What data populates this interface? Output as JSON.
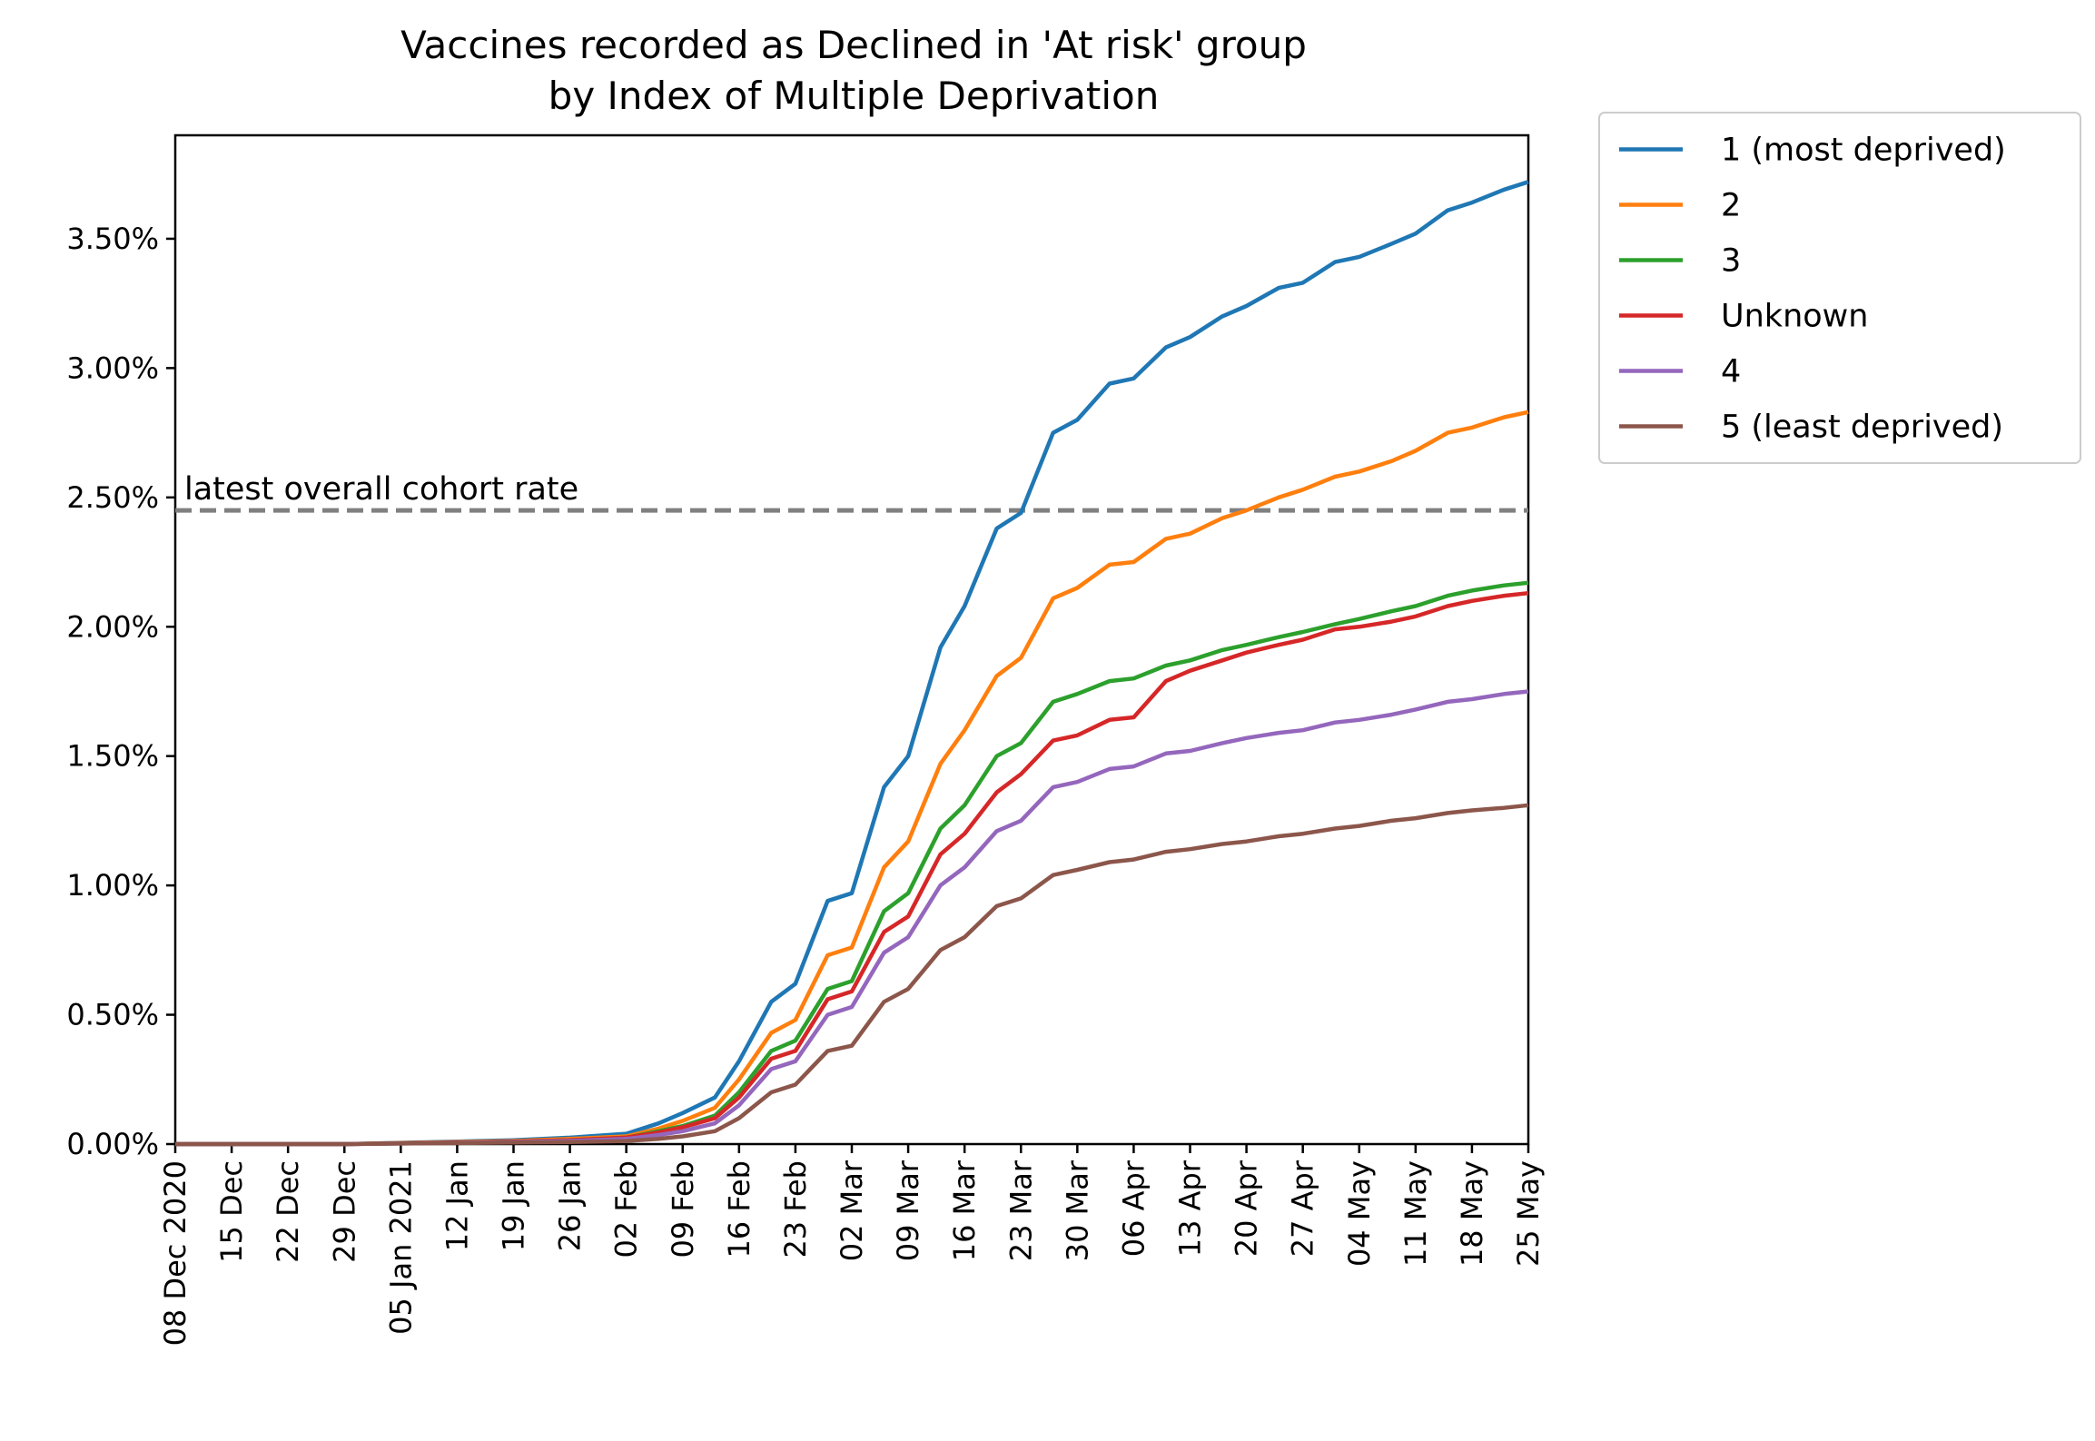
{
  "chart_data": {
    "type": "line",
    "title": "Vaccines recorded as Declined in 'At risk' group",
    "subtitle": "by Index of Multiple Deprivation",
    "xlabel": "",
    "ylabel": "",
    "x_range": [
      "2020-12-08",
      "2021-05-25"
    ],
    "ylim": [
      0,
      3.9
    ],
    "y_unit": "%",
    "yticks": [
      0,
      0.5,
      1.0,
      1.5,
      2.0,
      2.5,
      3.0,
      3.5
    ],
    "ytick_labels": [
      "0.00%",
      "0.50%",
      "1.00%",
      "1.50%",
      "2.00%",
      "2.50%",
      "3.00%",
      "3.50%"
    ],
    "xticks": [
      "2020-12-08",
      "2020-12-15",
      "2020-12-22",
      "2020-12-29",
      "2021-01-05",
      "2021-01-12",
      "2021-01-19",
      "2021-01-26",
      "2021-02-02",
      "2021-02-09",
      "2021-02-16",
      "2021-02-23",
      "2021-03-02",
      "2021-03-09",
      "2021-03-16",
      "2021-03-23",
      "2021-03-30",
      "2021-04-06",
      "2021-04-13",
      "2021-04-20",
      "2021-04-27",
      "2021-05-04",
      "2021-05-11",
      "2021-05-18",
      "2021-05-25"
    ],
    "xtick_labels": [
      "08 Dec 2020",
      "15 Dec",
      "22 Dec",
      "29 Dec",
      "05 Jan 2021",
      "12 Jan",
      "19 Jan",
      "26 Jan",
      "02 Feb",
      "09 Feb",
      "16 Feb",
      "23 Feb",
      "02 Mar",
      "09 Mar",
      "16 Mar",
      "23 Mar",
      "30 Mar",
      "06 Apr",
      "13 Apr",
      "20 Apr",
      "27 Apr",
      "04 May",
      "11 May",
      "18 May",
      "25 May"
    ],
    "grid": false,
    "legend_position": "outside-right-top",
    "reference_line": {
      "y": 2.45,
      "label": "latest overall cohort rate",
      "color": "#808080",
      "style": "dashed"
    },
    "x": [
      "2020-12-08",
      "2020-12-15",
      "2020-12-22",
      "2020-12-29",
      "2021-01-05",
      "2021-01-12",
      "2021-01-19",
      "2021-01-26",
      "2021-02-02",
      "2021-02-06",
      "2021-02-09",
      "2021-02-13",
      "2021-02-16",
      "2021-02-20",
      "2021-02-23",
      "2021-02-27",
      "2021-03-02",
      "2021-03-06",
      "2021-03-09",
      "2021-03-13",
      "2021-03-16",
      "2021-03-20",
      "2021-03-23",
      "2021-03-27",
      "2021-03-30",
      "2021-04-03",
      "2021-04-06",
      "2021-04-10",
      "2021-04-13",
      "2021-04-17",
      "2021-04-20",
      "2021-04-24",
      "2021-04-27",
      "2021-05-01",
      "2021-05-04",
      "2021-05-08",
      "2021-05-11",
      "2021-05-15",
      "2021-05-18",
      "2021-05-22",
      "2021-05-25"
    ],
    "series": [
      {
        "name": "1 (most deprived)",
        "color": "#1f77b4",
        "values": [
          0.0,
          0.0,
          0.0,
          0.0,
          0.005,
          0.01,
          0.015,
          0.025,
          0.04,
          0.08,
          0.12,
          0.18,
          0.32,
          0.55,
          0.62,
          0.94,
          0.97,
          1.38,
          1.5,
          1.92,
          2.08,
          2.38,
          2.44,
          2.75,
          2.8,
          2.94,
          2.96,
          3.08,
          3.12,
          3.2,
          3.24,
          3.31,
          3.33,
          3.41,
          3.43,
          3.48,
          3.52,
          3.61,
          3.64,
          3.69,
          3.72
        ]
      },
      {
        "name": "2",
        "color": "#ff7f0e",
        "values": [
          0.0,
          0.0,
          0.0,
          0.0,
          0.004,
          0.008,
          0.012,
          0.02,
          0.03,
          0.06,
          0.09,
          0.14,
          0.25,
          0.43,
          0.48,
          0.73,
          0.76,
          1.07,
          1.17,
          1.47,
          1.6,
          1.81,
          1.88,
          2.11,
          2.15,
          2.24,
          2.25,
          2.34,
          2.36,
          2.42,
          2.45,
          2.5,
          2.53,
          2.58,
          2.6,
          2.64,
          2.68,
          2.75,
          2.77,
          2.81,
          2.83
        ]
      },
      {
        "name": "3",
        "color": "#2ca02c",
        "values": [
          0.0,
          0.0,
          0.0,
          0.0,
          0.003,
          0.006,
          0.01,
          0.015,
          0.025,
          0.05,
          0.07,
          0.11,
          0.2,
          0.36,
          0.4,
          0.6,
          0.63,
          0.9,
          0.97,
          1.22,
          1.31,
          1.5,
          1.55,
          1.71,
          1.74,
          1.79,
          1.8,
          1.85,
          1.87,
          1.91,
          1.93,
          1.96,
          1.98,
          2.01,
          2.03,
          2.06,
          2.08,
          2.12,
          2.14,
          2.16,
          2.17
        ]
      },
      {
        "name": "Unknown",
        "color": "#d62728",
        "values": [
          0.0,
          0.0,
          0.0,
          0.0,
          0.003,
          0.006,
          0.01,
          0.015,
          0.025,
          0.045,
          0.065,
          0.1,
          0.18,
          0.33,
          0.36,
          0.56,
          0.59,
          0.82,
          0.88,
          1.12,
          1.2,
          1.36,
          1.43,
          1.56,
          1.58,
          1.64,
          1.65,
          1.79,
          1.83,
          1.87,
          1.9,
          1.93,
          1.95,
          1.99,
          2.0,
          2.02,
          2.04,
          2.08,
          2.1,
          2.12,
          2.13
        ]
      },
      {
        "name": "4",
        "color": "#9467bd",
        "values": [
          0.0,
          0.0,
          0.0,
          0.0,
          0.002,
          0.005,
          0.008,
          0.012,
          0.02,
          0.035,
          0.05,
          0.08,
          0.15,
          0.29,
          0.32,
          0.5,
          0.53,
          0.74,
          0.8,
          1.0,
          1.07,
          1.21,
          1.25,
          1.38,
          1.4,
          1.45,
          1.46,
          1.51,
          1.52,
          1.55,
          1.57,
          1.59,
          1.6,
          1.63,
          1.64,
          1.66,
          1.68,
          1.71,
          1.72,
          1.74,
          1.75
        ]
      },
      {
        "name": "5 (least deprived)",
        "color": "#8c564b",
        "values": [
          0.0,
          0.0,
          0.0,
          0.0,
          0.002,
          0.004,
          0.006,
          0.008,
          0.012,
          0.02,
          0.03,
          0.05,
          0.1,
          0.2,
          0.23,
          0.36,
          0.38,
          0.55,
          0.6,
          0.75,
          0.8,
          0.92,
          0.95,
          1.04,
          1.06,
          1.09,
          1.1,
          1.13,
          1.14,
          1.16,
          1.17,
          1.19,
          1.2,
          1.22,
          1.23,
          1.25,
          1.26,
          1.28,
          1.29,
          1.3,
          1.31
        ]
      }
    ]
  }
}
